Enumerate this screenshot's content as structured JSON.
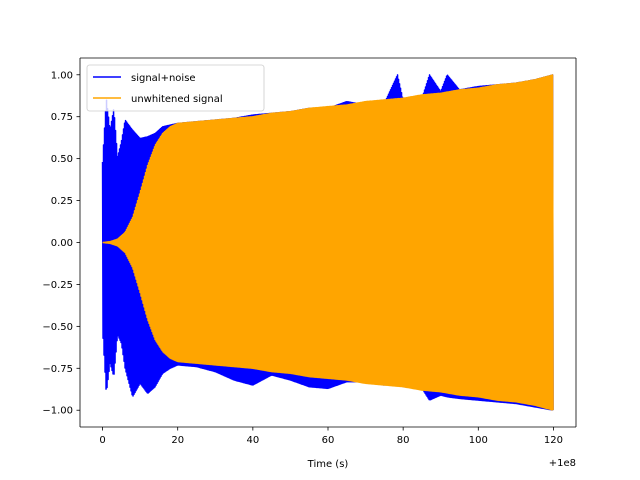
{
  "chart_data": {
    "type": "line",
    "title": "",
    "xlabel": "Time (s)",
    "ylabel": "",
    "x_offset_label": "+1e8",
    "xlim": [
      -6,
      126
    ],
    "ylim": [
      -1.1,
      1.1
    ],
    "x_ticks": [
      0,
      20,
      40,
      60,
      80,
      100,
      120
    ],
    "x_tick_labels": [
      "0",
      "20",
      "40",
      "60",
      "80",
      "100",
      "120"
    ],
    "y_ticks": [
      -1.0,
      -0.75,
      -0.5,
      -0.25,
      0.0,
      0.25,
      0.5,
      0.75,
      1.0
    ],
    "y_tick_labels": [
      "−1.00",
      "−0.75",
      "−0.50",
      "−0.25",
      "0.00",
      "0.25",
      "0.50",
      "0.75",
      "1.00"
    ],
    "grid": false,
    "legend_position": "upper-left",
    "series": [
      {
        "name": "signal+noise",
        "color": "#0000ff",
        "x": [
          0,
          1,
          2,
          3,
          4,
          5,
          6,
          8,
          10,
          12,
          14,
          16,
          18,
          20,
          25,
          30,
          35,
          40,
          45,
          50,
          55,
          60,
          65,
          70,
          75,
          78.5,
          80,
          85,
          87,
          90,
          91.7,
          95,
          100,
          105,
          110,
          115,
          120
        ],
        "upper": [
          0.48,
          0.86,
          0.67,
          0.8,
          0.51,
          0.6,
          0.73,
          0.67,
          0.62,
          0.63,
          0.65,
          0.69,
          0.7,
          0.71,
          0.72,
          0.73,
          0.74,
          0.76,
          0.77,
          0.78,
          0.8,
          0.8,
          0.84,
          0.82,
          0.83,
          1.0,
          0.85,
          0.86,
          1.0,
          0.9,
          1.0,
          0.91,
          0.93,
          0.94,
          0.95,
          0.97,
          1.0
        ],
        "lower": [
          -0.52,
          -0.9,
          -0.72,
          -0.8,
          -0.55,
          -0.6,
          -0.75,
          -0.92,
          -0.84,
          -0.9,
          -0.86,
          -0.78,
          -0.75,
          -0.73,
          -0.74,
          -0.77,
          -0.82,
          -0.85,
          -0.79,
          -0.82,
          -0.86,
          -0.87,
          -0.83,
          -0.83,
          -0.85,
          -0.83,
          -0.86,
          -0.87,
          -0.94,
          -0.91,
          -0.92,
          -0.93,
          -0.94,
          -0.95,
          -0.96,
          -0.98,
          -1.0
        ]
      },
      {
        "name": "unwhitened signal",
        "color": "#ffa500",
        "x": [
          0,
          2,
          4,
          6,
          8,
          10,
          12,
          14,
          16,
          18,
          20,
          25,
          30,
          35,
          40,
          45,
          50,
          55,
          60,
          65,
          70,
          75,
          80,
          85,
          90,
          95,
          100,
          105,
          110,
          115,
          120
        ],
        "upper": [
          0.0,
          0.005,
          0.02,
          0.06,
          0.15,
          0.3,
          0.46,
          0.58,
          0.65,
          0.69,
          0.71,
          0.72,
          0.73,
          0.74,
          0.75,
          0.77,
          0.78,
          0.8,
          0.81,
          0.82,
          0.84,
          0.85,
          0.86,
          0.88,
          0.89,
          0.91,
          0.92,
          0.94,
          0.95,
          0.97,
          1.0
        ],
        "lower": [
          0.0,
          -0.005,
          -0.02,
          -0.06,
          -0.15,
          -0.3,
          -0.46,
          -0.58,
          -0.65,
          -0.69,
          -0.71,
          -0.72,
          -0.73,
          -0.74,
          -0.75,
          -0.77,
          -0.78,
          -0.8,
          -0.81,
          -0.82,
          -0.84,
          -0.85,
          -0.86,
          -0.88,
          -0.89,
          -0.91,
          -0.92,
          -0.94,
          -0.95,
          -0.97,
          -1.0
        ]
      }
    ]
  }
}
